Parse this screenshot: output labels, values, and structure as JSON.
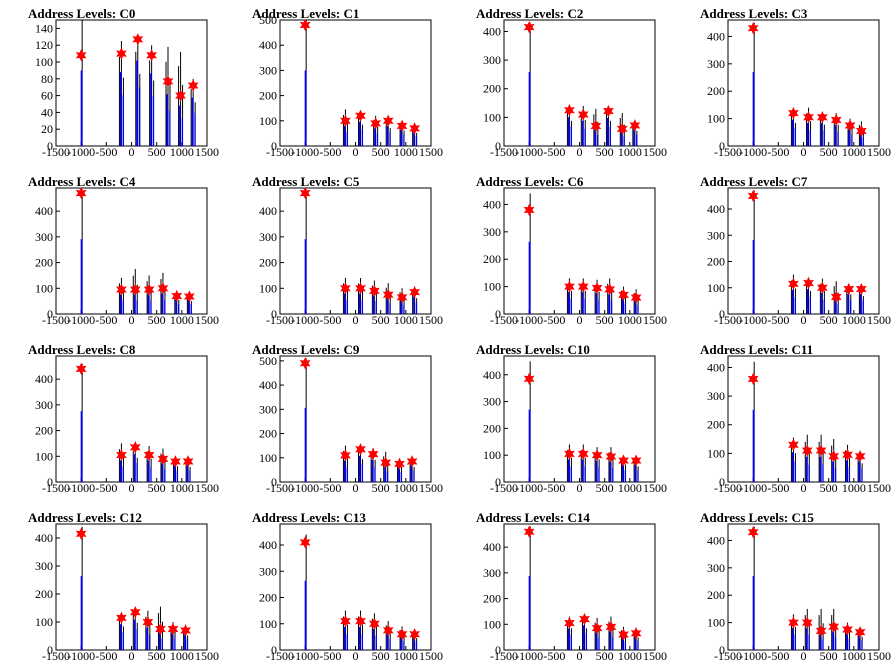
{
  "chart_data": [
    {
      "type": "histogram",
      "title": "Address Levels: C0",
      "xlim": [
        -1500,
        1500
      ],
      "ylim": [
        0,
        150
      ],
      "yticks": [
        0,
        20,
        40,
        60,
        80,
        100,
        120,
        140
      ],
      "xticks": [
        -1500,
        -1000,
        -500,
        0,
        500,
        1000,
        1500
      ],
      "peaks": [
        {
          "x": -1000,
          "y": 108,
          "max": 150
        },
        {
          "x": -200,
          "y": 110,
          "max": 125
        },
        {
          "x": 125,
          "y": 127,
          "max": 132
        },
        {
          "x": 400,
          "y": 108,
          "max": 120
        },
        {
          "x": 725,
          "y": 77,
          "max": 118
        },
        {
          "x": 975,
          "y": 60,
          "max": 112
        },
        {
          "x": 1225,
          "y": 72,
          "max": 80
        }
      ]
    },
    {
      "type": "histogram",
      "title": "Address Levels: C1",
      "xlim": [
        -1500,
        1500
      ],
      "ylim": [
        0,
        500
      ],
      "yticks": [
        0,
        100,
        200,
        300,
        400,
        500
      ],
      "xticks": [
        -1500,
        -1000,
        -500,
        0,
        500,
        1000,
        1500
      ],
      "peaks": [
        {
          "x": -1000,
          "y": 480,
          "max": 500
        },
        {
          "x": -200,
          "y": 100,
          "max": 145
        },
        {
          "x": 100,
          "y": 120,
          "max": 130
        },
        {
          "x": 400,
          "y": 90,
          "max": 120
        },
        {
          "x": 650,
          "y": 100,
          "max": 110
        },
        {
          "x": 925,
          "y": 80,
          "max": 95
        },
        {
          "x": 1175,
          "y": 70,
          "max": 80
        }
      ]
    },
    {
      "type": "histogram",
      "title": "Address Levels: C2",
      "xlim": [
        -1500,
        1500
      ],
      "ylim": [
        0,
        440
      ],
      "yticks": [
        0,
        100,
        200,
        300,
        400
      ],
      "xticks": [
        -1500,
        -1000,
        -500,
        0,
        500,
        1000,
        1500
      ],
      "peaks": [
        {
          "x": -1000,
          "y": 415,
          "max": 430
        },
        {
          "x": -200,
          "y": 125,
          "max": 135
        },
        {
          "x": 75,
          "y": 110,
          "max": 140
        },
        {
          "x": 325,
          "y": 70,
          "max": 130
        },
        {
          "x": 575,
          "y": 122,
          "max": 135
        },
        {
          "x": 850,
          "y": 60,
          "max": 115
        },
        {
          "x": 1100,
          "y": 72,
          "max": 82
        }
      ]
    },
    {
      "type": "histogram",
      "title": "Address Levels: C3",
      "xlim": [
        -1500,
        1500
      ],
      "ylim": [
        0,
        460
      ],
      "yticks": [
        0,
        100,
        200,
        300,
        400
      ],
      "xticks": [
        -1500,
        -1000,
        -500,
        0,
        500,
        1000,
        1500
      ],
      "peaks": [
        {
          "x": -1000,
          "y": 430,
          "max": 450
        },
        {
          "x": -200,
          "y": 120,
          "max": 130
        },
        {
          "x": 100,
          "y": 105,
          "max": 140
        },
        {
          "x": 375,
          "y": 105,
          "max": 120
        },
        {
          "x": 650,
          "y": 95,
          "max": 120
        },
        {
          "x": 925,
          "y": 75,
          "max": 100
        },
        {
          "x": 1150,
          "y": 55,
          "max": 90
        }
      ]
    },
    {
      "type": "histogram",
      "title": "Address Levels: C4",
      "xlim": [
        -1500,
        1500
      ],
      "ylim": [
        0,
        490
      ],
      "yticks": [
        0,
        100,
        200,
        300,
        400
      ],
      "xticks": [
        -1500,
        -1000,
        -500,
        0,
        500,
        1000,
        1500
      ],
      "peaks": [
        {
          "x": -1000,
          "y": 470,
          "max": 485
        },
        {
          "x": -200,
          "y": 95,
          "max": 140
        },
        {
          "x": 75,
          "y": 95,
          "max": 175
        },
        {
          "x": 350,
          "y": 95,
          "max": 150
        },
        {
          "x": 625,
          "y": 100,
          "max": 160
        },
        {
          "x": 900,
          "y": 70,
          "max": 85
        },
        {
          "x": 1150,
          "y": 68,
          "max": 78
        }
      ]
    },
    {
      "type": "histogram",
      "title": "Address Levels: C5",
      "xlim": [
        -1500,
        1500
      ],
      "ylim": [
        0,
        490
      ],
      "yticks": [
        0,
        100,
        200,
        300,
        400
      ],
      "xticks": [
        -1500,
        -1000,
        -500,
        0,
        500,
        1000,
        1500
      ],
      "peaks": [
        {
          "x": -1000,
          "y": 470,
          "max": 485
        },
        {
          "x": -200,
          "y": 100,
          "max": 140
        },
        {
          "x": 100,
          "y": 100,
          "max": 140
        },
        {
          "x": 375,
          "y": 90,
          "max": 130
        },
        {
          "x": 650,
          "y": 75,
          "max": 120
        },
        {
          "x": 925,
          "y": 65,
          "max": 100
        },
        {
          "x": 1175,
          "y": 85,
          "max": 95
        }
      ]
    },
    {
      "type": "histogram",
      "title": "Address Levels: C6",
      "xlim": [
        -1500,
        1500
      ],
      "ylim": [
        0,
        460
      ],
      "yticks": [
        0,
        100,
        200,
        300,
        400
      ],
      "xticks": [
        -1500,
        -1000,
        -500,
        0,
        500,
        1000,
        1500
      ],
      "peaks": [
        {
          "x": -1000,
          "y": 380,
          "max": 440
        },
        {
          "x": -200,
          "y": 100,
          "max": 130
        },
        {
          "x": 75,
          "y": 100,
          "max": 130
        },
        {
          "x": 350,
          "y": 95,
          "max": 125
        },
        {
          "x": 600,
          "y": 90,
          "max": 130
        },
        {
          "x": 875,
          "y": 70,
          "max": 100
        },
        {
          "x": 1125,
          "y": 60,
          "max": 90
        }
      ]
    },
    {
      "type": "histogram",
      "title": "Address Levels: C7",
      "xlim": [
        -1500,
        1500
      ],
      "ylim": [
        0,
        480
      ],
      "yticks": [
        0,
        100,
        200,
        300,
        400
      ],
      "xticks": [
        -1500,
        -1000,
        -500,
        0,
        500,
        1000,
        1500
      ],
      "peaks": [
        {
          "x": -1000,
          "y": 450,
          "max": 470
        },
        {
          "x": -200,
          "y": 115,
          "max": 150
        },
        {
          "x": 100,
          "y": 118,
          "max": 135
        },
        {
          "x": 375,
          "y": 100,
          "max": 135
        },
        {
          "x": 650,
          "y": 65,
          "max": 125
        },
        {
          "x": 900,
          "y": 95,
          "max": 115
        },
        {
          "x": 1150,
          "y": 95,
          "max": 105
        }
      ]
    },
    {
      "type": "histogram",
      "title": "Address Levels: C8",
      "xlim": [
        -1500,
        1500
      ],
      "ylim": [
        0,
        490
      ],
      "yticks": [
        0,
        100,
        200,
        300,
        400
      ],
      "xticks": [
        -1500,
        -1000,
        -500,
        0,
        500,
        1000,
        1500
      ],
      "peaks": [
        {
          "x": -1000,
          "y": 440,
          "max": 460
        },
        {
          "x": -200,
          "y": 105,
          "max": 150
        },
        {
          "x": 75,
          "y": 135,
          "max": 145
        },
        {
          "x": 350,
          "y": 105,
          "max": 140
        },
        {
          "x": 625,
          "y": 90,
          "max": 130
        },
        {
          "x": 875,
          "y": 80,
          "max": 95
        },
        {
          "x": 1125,
          "y": 80,
          "max": 90
        }
      ]
    },
    {
      "type": "histogram",
      "title": "Address Levels: C9",
      "xlim": [
        -1500,
        1500
      ],
      "ylim": [
        0,
        520
      ],
      "yticks": [
        0,
        100,
        200,
        300,
        400,
        500
      ],
      "xticks": [
        -1500,
        -1000,
        -500,
        0,
        500,
        1000,
        1500
      ],
      "peaks": [
        {
          "x": -1000,
          "y": 490,
          "max": 510
        },
        {
          "x": -200,
          "y": 110,
          "max": 150
        },
        {
          "x": 100,
          "y": 135,
          "max": 145
        },
        {
          "x": 350,
          "y": 115,
          "max": 140
        },
        {
          "x": 600,
          "y": 80,
          "max": 125
        },
        {
          "x": 875,
          "y": 75,
          "max": 95
        },
        {
          "x": 1125,
          "y": 85,
          "max": 95
        }
      ]
    },
    {
      "type": "histogram",
      "title": "Address Levels: C10",
      "xlim": [
        -1500,
        1500
      ],
      "ylim": [
        0,
        470
      ],
      "yticks": [
        0,
        100,
        200,
        300,
        400
      ],
      "xticks": [
        -1500,
        -1000,
        -500,
        0,
        500,
        1000,
        1500
      ],
      "peaks": [
        {
          "x": -1000,
          "y": 385,
          "max": 450
        },
        {
          "x": -200,
          "y": 105,
          "max": 140
        },
        {
          "x": 75,
          "y": 105,
          "max": 140
        },
        {
          "x": 350,
          "y": 100,
          "max": 130
        },
        {
          "x": 625,
          "y": 95,
          "max": 130
        },
        {
          "x": 875,
          "y": 80,
          "max": 100
        },
        {
          "x": 1125,
          "y": 80,
          "max": 90
        }
      ]
    },
    {
      "type": "histogram",
      "title": "Address Levels: C11",
      "xlim": [
        -1500,
        1500
      ],
      "ylim": [
        0,
        440
      ],
      "yticks": [
        0,
        100,
        200,
        300,
        400
      ],
      "xticks": [
        -1500,
        -1000,
        -500,
        0,
        500,
        1000,
        1500
      ],
      "peaks": [
        {
          "x": -1000,
          "y": 360,
          "max": 420
        },
        {
          "x": -200,
          "y": 130,
          "max": 155
        },
        {
          "x": 75,
          "y": 110,
          "max": 165
        },
        {
          "x": 350,
          "y": 110,
          "max": 165
        },
        {
          "x": 600,
          "y": 90,
          "max": 150
        },
        {
          "x": 875,
          "y": 95,
          "max": 130
        },
        {
          "x": 1125,
          "y": 90,
          "max": 100
        }
      ]
    },
    {
      "type": "histogram",
      "title": "Address Levels: C12",
      "xlim": [
        -1500,
        1500
      ],
      "ylim": [
        0,
        450
      ],
      "yticks": [
        0,
        100,
        200,
        300,
        400
      ],
      "xticks": [
        -1500,
        -1000,
        -500,
        0,
        500,
        1000,
        1500
      ],
      "peaks": [
        {
          "x": -1000,
          "y": 415,
          "max": 440
        },
        {
          "x": -200,
          "y": 115,
          "max": 130
        },
        {
          "x": 75,
          "y": 135,
          "max": 150
        },
        {
          "x": 325,
          "y": 100,
          "max": 140
        },
        {
          "x": 575,
          "y": 75,
          "max": 155
        },
        {
          "x": 825,
          "y": 75,
          "max": 100
        },
        {
          "x": 1075,
          "y": 70,
          "max": 80
        }
      ]
    },
    {
      "type": "histogram",
      "title": "Address Levels: C13",
      "xlim": [
        -1500,
        1500
      ],
      "ylim": [
        0,
        480
      ],
      "yticks": [
        0,
        100,
        200,
        300,
        400
      ],
      "xticks": [
        -1500,
        -1000,
        -500,
        0,
        500,
        1000,
        1500
      ],
      "peaks": [
        {
          "x": -1000,
          "y": 410,
          "max": 440
        },
        {
          "x": -200,
          "y": 110,
          "max": 150
        },
        {
          "x": 100,
          "y": 110,
          "max": 150
        },
        {
          "x": 375,
          "y": 100,
          "max": 140
        },
        {
          "x": 650,
          "y": 75,
          "max": 110
        },
        {
          "x": 925,
          "y": 60,
          "max": 90
        },
        {
          "x": 1175,
          "y": 60,
          "max": 70
        }
      ]
    },
    {
      "type": "histogram",
      "title": "Address Levels: C14",
      "xlim": [
        -1500,
        1500
      ],
      "ylim": [
        0,
        490
      ],
      "yticks": [
        0,
        100,
        200,
        300,
        400
      ],
      "xticks": [
        -1500,
        -1000,
        -500,
        0,
        500,
        1000,
        1500
      ],
      "peaks": [
        {
          "x": -1000,
          "y": 460,
          "max": 480
        },
        {
          "x": -200,
          "y": 105,
          "max": 130
        },
        {
          "x": 100,
          "y": 120,
          "max": 130
        },
        {
          "x": 350,
          "y": 85,
          "max": 125
        },
        {
          "x": 625,
          "y": 90,
          "max": 130
        },
        {
          "x": 875,
          "y": 60,
          "max": 90
        },
        {
          "x": 1125,
          "y": 65,
          "max": 75
        }
      ]
    },
    {
      "type": "histogram",
      "title": "Address Levels: C15",
      "xlim": [
        -1500,
        1500
      ],
      "ylim": [
        0,
        460
      ],
      "yticks": [
        0,
        100,
        200,
        300,
        400
      ],
      "xticks": [
        -1500,
        -1000,
        -500,
        0,
        500,
        1000,
        1500
      ],
      "peaks": [
        {
          "x": -1000,
          "y": 430,
          "max": 450
        },
        {
          "x": -200,
          "y": 100,
          "max": 130
        },
        {
          "x": 75,
          "y": 100,
          "max": 150
        },
        {
          "x": 350,
          "y": 70,
          "max": 150
        },
        {
          "x": 600,
          "y": 85,
          "max": 150
        },
        {
          "x": 875,
          "y": 75,
          "max": 100
        },
        {
          "x": 1125,
          "y": 65,
          "max": 75
        }
      ]
    }
  ],
  "colors": {
    "signal": "#0000ff",
    "envelope": "#000000",
    "marker": "#ff0000"
  }
}
